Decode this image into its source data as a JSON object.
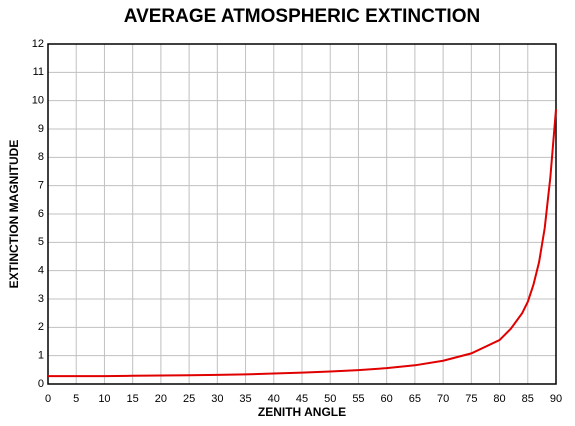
{
  "chart_data": {
    "type": "line",
    "title": "AVERAGE ATMOSPHERIC EXTINCTION",
    "x_label": "ZENITH ANGLE",
    "y_label": "EXTINCTION MAGNITUDE",
    "x": [
      0,
      5,
      10,
      15,
      20,
      25,
      30,
      35,
      40,
      45,
      50,
      55,
      60,
      65,
      70,
      75,
      80,
      82,
      84,
      85,
      86,
      87,
      88,
      89,
      90
    ],
    "series": [
      {
        "name": "extinction",
        "color": "#e00000",
        "values": [
          0.28,
          0.28,
          0.28,
          0.29,
          0.3,
          0.31,
          0.32,
          0.34,
          0.37,
          0.4,
          0.44,
          0.49,
          0.56,
          0.66,
          0.82,
          1.08,
          1.55,
          1.95,
          2.5,
          2.9,
          3.5,
          4.3,
          5.5,
          7.3,
          9.7
        ]
      }
    ],
    "xlim": [
      0,
      90
    ],
    "xticks": [
      0,
      5,
      10,
      15,
      20,
      25,
      30,
      35,
      40,
      45,
      50,
      55,
      60,
      65,
      70,
      75,
      80,
      85,
      90
    ],
    "ylim": [
      0,
      12
    ],
    "yticks": [
      0,
      1,
      2,
      3,
      4,
      5,
      6,
      7,
      8,
      9,
      10,
      11,
      12
    ],
    "grid": true
  }
}
